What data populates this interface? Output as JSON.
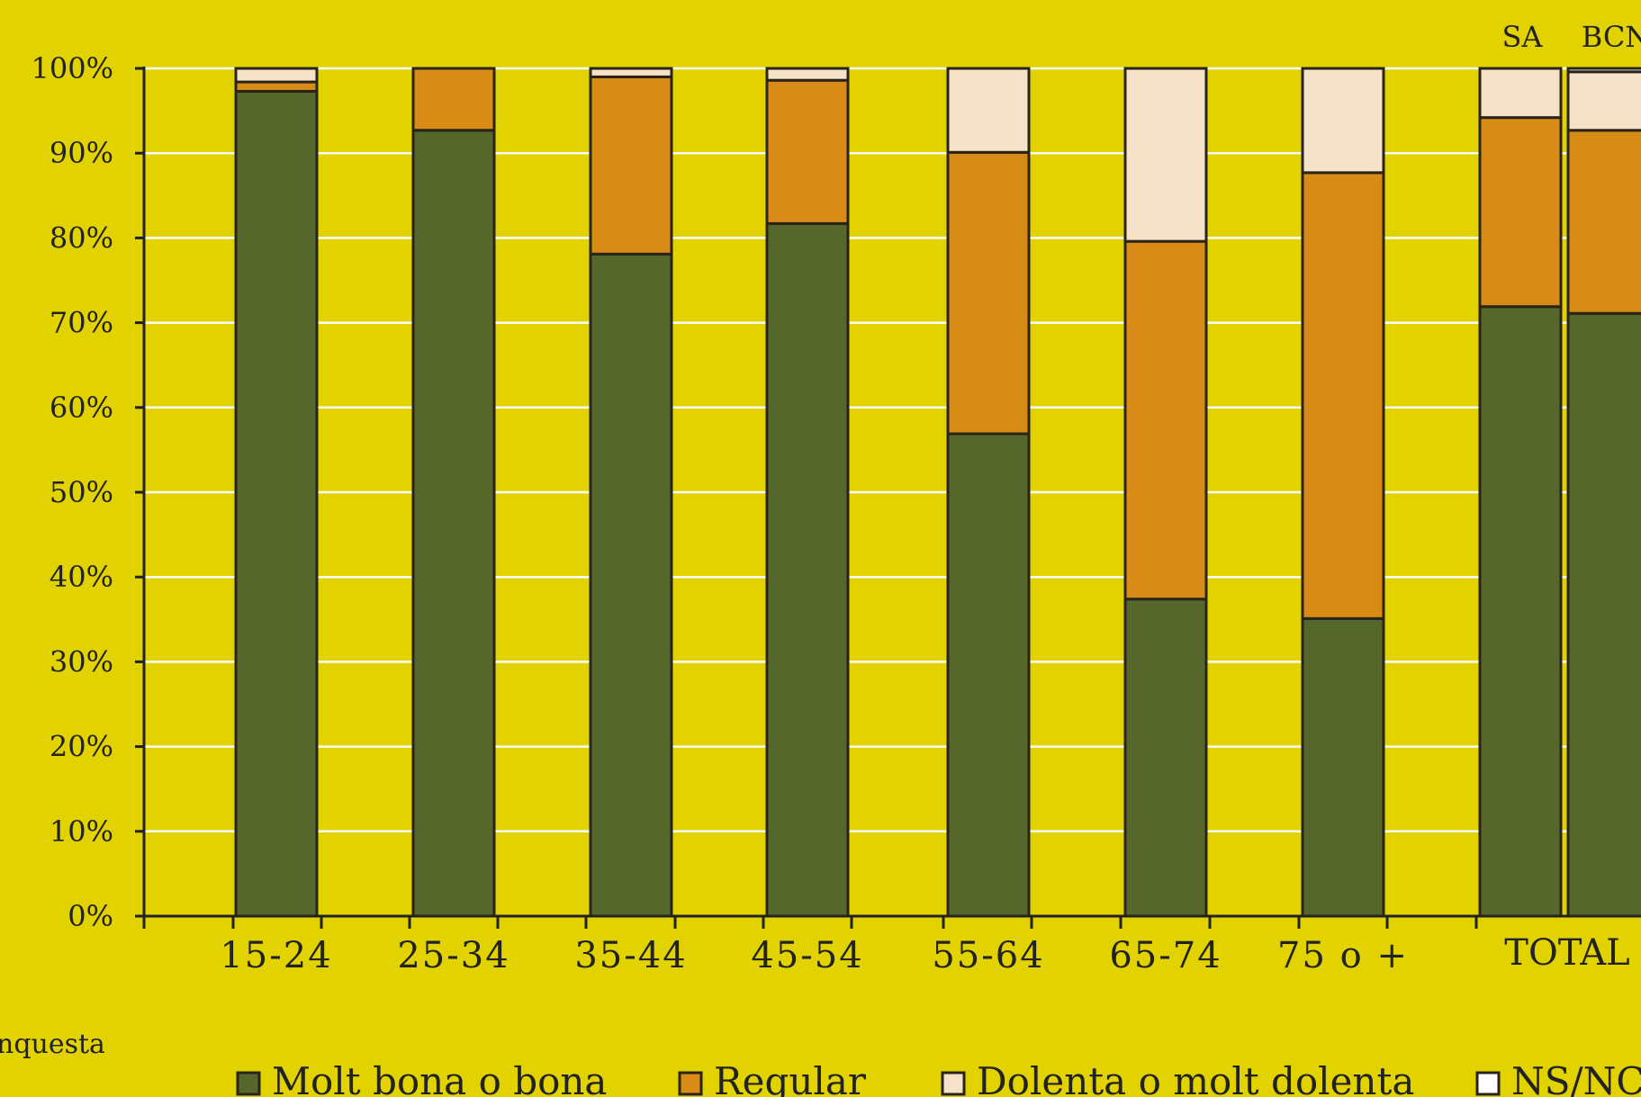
{
  "chart_data": {
    "type": "bar",
    "stacked": true,
    "categories": [
      "15-24",
      "25-34",
      "35-44",
      "45-54",
      "55-64",
      "65-74",
      "75 o +",
      "SA",
      "BCN"
    ],
    "category_labels": [
      "15-24",
      "25-34",
      "35-44",
      "45-54",
      "55-64",
      "65-74",
      "75 o +"
    ],
    "group_label": "TOTAL",
    "bar_top_labels": [
      "SA",
      "BCN"
    ],
    "yticks": [
      "0%",
      "10%",
      "20%",
      "30%",
      "40%",
      "50%",
      "60%",
      "70%",
      "80%",
      "90%",
      "100%"
    ],
    "ylim": [
      0,
      100
    ],
    "grid": true,
    "legend_position": "bottom",
    "series": [
      {
        "name": "Molt bona o bona",
        "color": "#55672A",
        "values": [
          97.3,
          92.7,
          78.1,
          81.7,
          56.9,
          37.4,
          35.1,
          71.9,
          71.1
        ]
      },
      {
        "name": "Regular",
        "color": "#D88B17",
        "values": [
          1.1,
          7.3,
          20.9,
          16.9,
          33.2,
          42.2,
          52.6,
          22.3,
          21.6
        ]
      },
      {
        "name": "Dolenta o molt dolenta",
        "color": "#F5E2C8",
        "values": [
          1.6,
          0.0,
          1.0,
          1.4,
          9.9,
          20.4,
          12.3,
          5.8,
          6.9
        ]
      },
      {
        "name": "NS/NC",
        "color": "#FFFFFF",
        "values": [
          0.0,
          0.0,
          0.0,
          0.0,
          0.0,
          0.0,
          0.0,
          0.0,
          0.4
        ]
      }
    ],
    "footnote": "nquesta"
  }
}
